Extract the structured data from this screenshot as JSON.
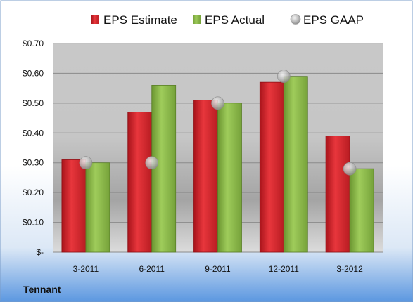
{
  "company": "Tennant",
  "colors": {
    "estimate": "#d9262e",
    "actual": "#8db94b",
    "gaap": "#b4b4b4"
  },
  "chart_data": {
    "type": "bar",
    "categories": [
      "3-2011",
      "6-2011",
      "9-2011",
      "12-2011",
      "3-2012"
    ],
    "series": [
      {
        "name": "EPS Estimate",
        "style": "bar",
        "values": [
          0.31,
          0.47,
          0.51,
          0.57,
          0.39
        ]
      },
      {
        "name": "EPS Actual",
        "style": "bar",
        "values": [
          0.3,
          0.56,
          0.5,
          0.59,
          0.28
        ]
      },
      {
        "name": "EPS GAAP",
        "style": "marker",
        "values": [
          0.3,
          0.3,
          0.5,
          0.59,
          0.28
        ]
      }
    ],
    "ylim": [
      0,
      0.7
    ],
    "yticks": [
      0,
      0.1,
      0.2,
      0.3,
      0.4,
      0.5,
      0.6,
      0.7
    ],
    "ytick_labels": [
      "$-",
      "$0.10",
      "$0.20",
      "$0.30",
      "$0.40",
      "$0.50",
      "$0.60",
      "$0.70"
    ],
    "legend_position": "top",
    "grid": true
  }
}
